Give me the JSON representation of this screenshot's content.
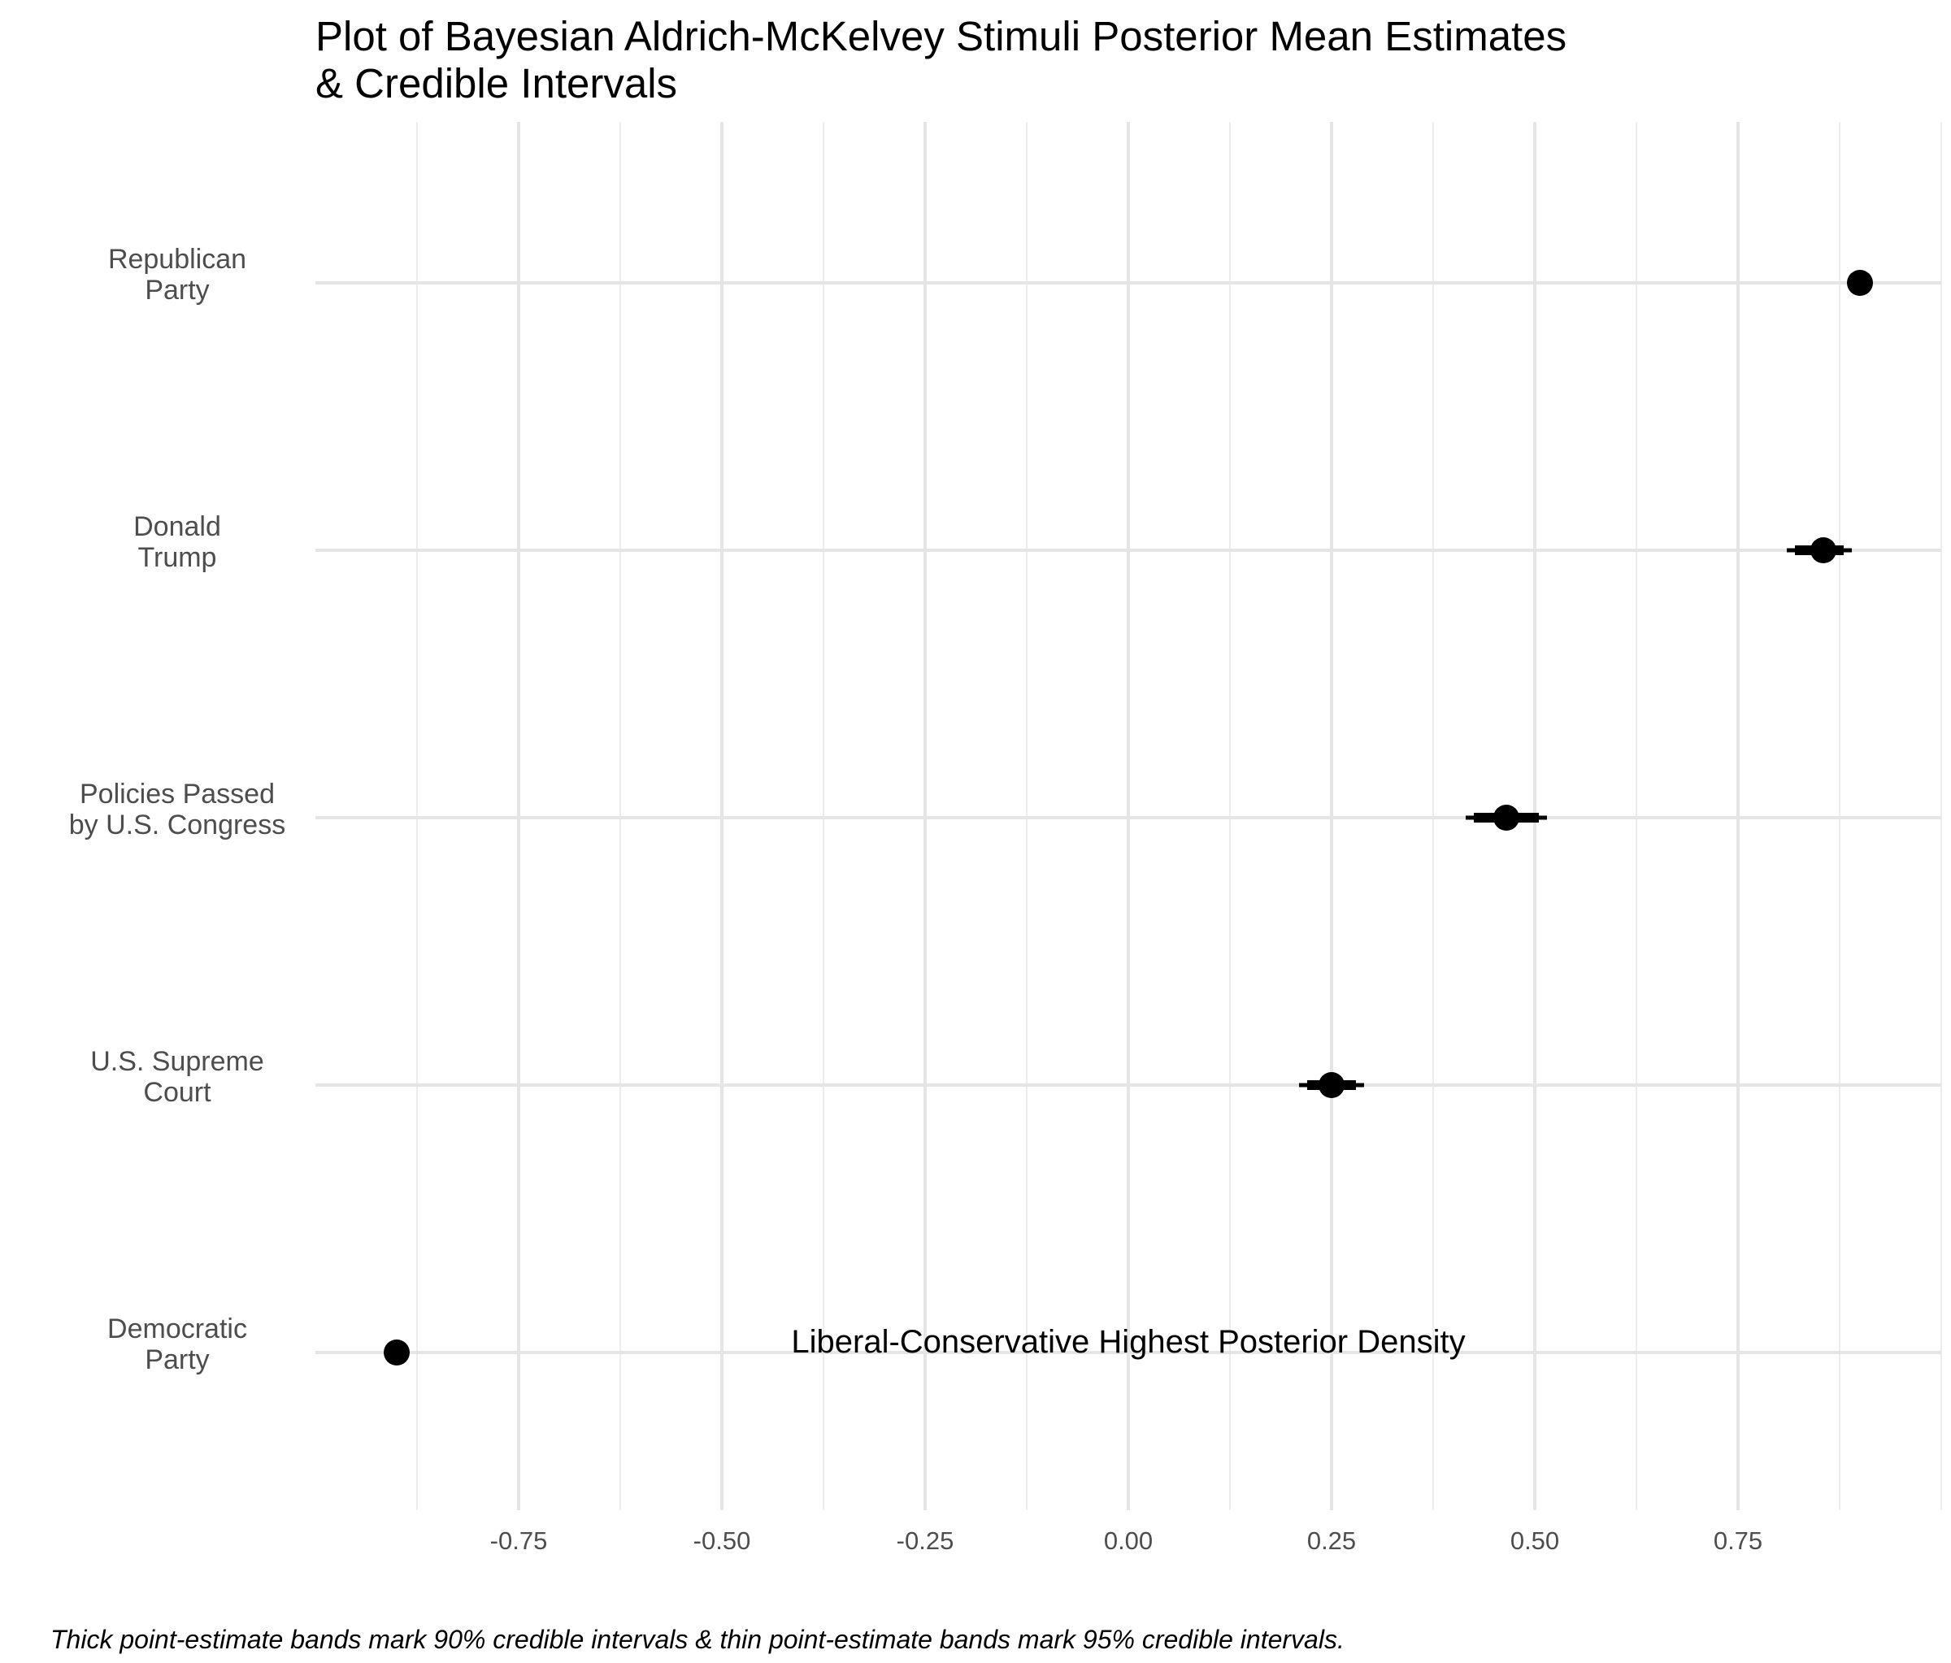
{
  "chart_data": {
    "type": "scatter",
    "title": "Plot of Bayesian Aldrich-McKelvey Stimuli Posterior Mean Estimates\n& Credible Intervals",
    "xlabel": "Liberal-Conservative Highest Posterior Density",
    "ylabel": "",
    "caption": "Thick point-estimate bands mark 90% credible intervals & thin point-estimate bands mark 95% credible intervals.",
    "xlim": [
      -0.955,
      1.0
    ],
    "x_ticks": [
      -0.75,
      -0.5,
      -0.25,
      0.0,
      0.25,
      0.5,
      0.75
    ],
    "x_tick_labels": [
      "-0.75",
      "-0.50",
      "-0.25",
      "0.00",
      "0.25",
      "0.50",
      "0.75"
    ],
    "grid": true,
    "legend": "none",
    "colors": {
      "point": "#000000",
      "grid": "#e5e5e5",
      "label": "#4d4d4d"
    },
    "stimuli": [
      {
        "label": "Republican\nParty",
        "mean": 0.9,
        "ci90": [
          0.895,
          0.905
        ],
        "ci95": [
          0.893,
          0.907
        ]
      },
      {
        "label": "Donald\nTrump",
        "mean": 0.855,
        "ci90": [
          0.82,
          0.88
        ],
        "ci95": [
          0.81,
          0.89
        ]
      },
      {
        "label": "Policies Passed\nby U.S. Congress",
        "mean": 0.465,
        "ci90": [
          0.425,
          0.505
        ],
        "ci95": [
          0.415,
          0.515
        ]
      },
      {
        "label": "U.S. Supreme\nCourt",
        "mean": 0.25,
        "ci90": [
          0.22,
          0.28
        ],
        "ci95": [
          0.21,
          0.29
        ]
      },
      {
        "label": "Democratic\nParty",
        "mean": -0.9,
        "ci90": [
          -0.905,
          -0.895
        ],
        "ci95": [
          -0.907,
          -0.893
        ]
      }
    ]
  }
}
